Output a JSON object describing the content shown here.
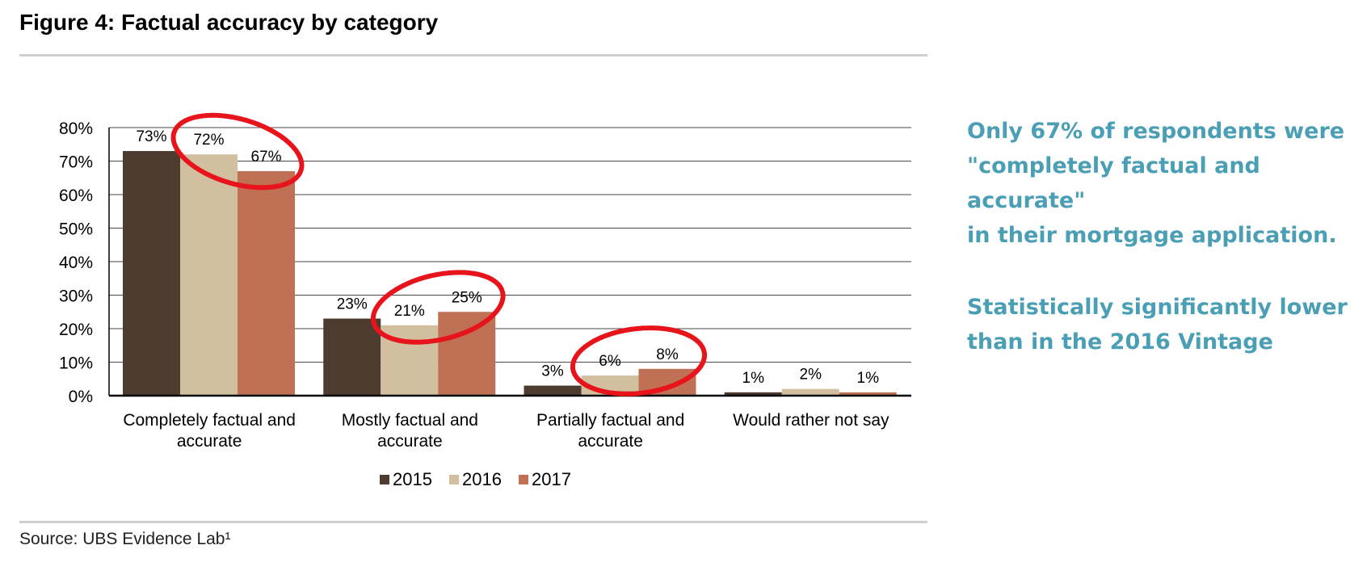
{
  "header": {
    "title": "Figure 4: Factual accuracy by category"
  },
  "footer": {
    "source": "Source:  UBS Evidence Lab¹"
  },
  "callouts": {
    "first": "Only 67% of respondents were\n\"completely factual and accurate\"\nin their mortgage application.",
    "second": "Statistically significantly lower\nthan in the 2016 Vintage"
  },
  "chart_data": {
    "type": "bar",
    "title": "Factual accuracy by category",
    "categories": [
      [
        "Completely factual and",
        "accurate"
      ],
      [
        "Mostly factual and",
        "accurate"
      ],
      [
        "Partially factual and",
        "accurate"
      ],
      [
        "Would rather not say"
      ]
    ],
    "series": [
      {
        "name": "2015",
        "color": "#4e3b30",
        "values": [
          73,
          23,
          3,
          1
        ]
      },
      {
        "name": "2016",
        "color": "#d2bf9f",
        "values": [
          72,
          21,
          6,
          2
        ]
      },
      {
        "name": "2017",
        "color": "#c07155",
        "values": [
          67,
          25,
          8,
          1
        ]
      }
    ],
    "ylim": [
      0,
      80
    ],
    "yticks": [
      0,
      10,
      20,
      30,
      40,
      50,
      60,
      70,
      80
    ],
    "ytick_labels": [
      "0%",
      "10%",
      "20%",
      "30%",
      "40%",
      "50%",
      "60%",
      "70%",
      "80%"
    ],
    "grid": true,
    "legend": "bottom-center",
    "highlight_color": "#e8141b",
    "highlighted": [
      {
        "category": 0,
        "series": [
          1,
          2
        ]
      },
      {
        "category": 1,
        "series": [
          1,
          2
        ]
      },
      {
        "category": 2,
        "series": [
          1,
          2
        ]
      }
    ]
  }
}
